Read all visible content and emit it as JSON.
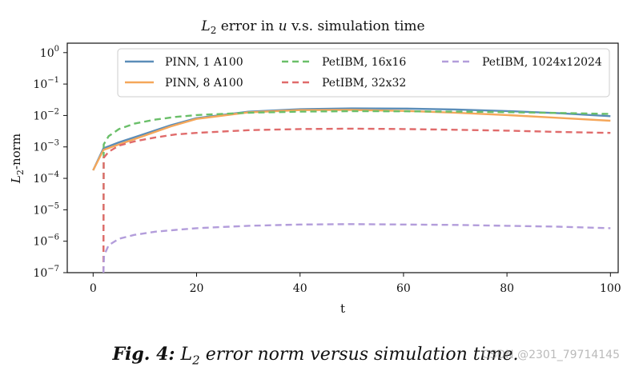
{
  "chart_data": {
    "type": "line",
    "title": "L2 error in u v.s. simulation time",
    "xlabel": "t",
    "ylabel": "L2-norm",
    "xlim": [
      -5,
      101.5
    ],
    "ylim_log10": [
      -7,
      0.3
    ],
    "y_scale": "log",
    "xticks": [
      0,
      20,
      40,
      60,
      80,
      100
    ],
    "yticks_exponents": [
      0,
      -1,
      -2,
      -3,
      -4,
      -5,
      -6,
      -7
    ],
    "grid": false,
    "legend_position": "top-right",
    "series": [
      {
        "name": "PINN, 1 A100",
        "color": "#5b8db8",
        "style": "solid",
        "x": [
          0,
          2,
          5,
          10,
          15,
          20,
          30,
          40,
          50,
          60,
          70,
          80,
          90,
          100
        ],
        "y": [
          0.00018,
          0.0009,
          0.0014,
          0.0026,
          0.0049,
          0.0082,
          0.0132,
          0.0158,
          0.0168,
          0.0166,
          0.0155,
          0.0138,
          0.0118,
          0.0095
        ]
      },
      {
        "name": "PINN, 8 A100",
        "color": "#f5a75a",
        "style": "solid",
        "x": [
          0,
          2,
          5,
          10,
          15,
          20,
          30,
          40,
          50,
          60,
          70,
          80,
          90,
          100
        ],
        "y": [
          0.00018,
          0.0008,
          0.0012,
          0.0023,
          0.0045,
          0.0078,
          0.0126,
          0.0148,
          0.015,
          0.014,
          0.0123,
          0.0103,
          0.0084,
          0.0068
        ]
      },
      {
        "name": "PetIBM, 16x16",
        "color": "#6abf69",
        "style": "dashed",
        "x": [
          2,
          2.05,
          3,
          5,
          8,
          12,
          16,
          20,
          30,
          40,
          50,
          60,
          70,
          80,
          90,
          100
        ],
        "y": [
          1e-07,
          0.0012,
          0.0022,
          0.0037,
          0.0055,
          0.0074,
          0.009,
          0.0103,
          0.0122,
          0.0133,
          0.0137,
          0.0136,
          0.0133,
          0.0127,
          0.012,
          0.0112
        ]
      },
      {
        "name": "PetIBM, 32x32",
        "color": "#e06b6b",
        "style": "dashed",
        "x": [
          2,
          2.05,
          3,
          5,
          8,
          12,
          16,
          20,
          30,
          40,
          50,
          60,
          70,
          80,
          90,
          100
        ],
        "y": [
          1e-07,
          0.00045,
          0.0007,
          0.0011,
          0.0015,
          0.002,
          0.0025,
          0.0028,
          0.0034,
          0.0037,
          0.0038,
          0.0037,
          0.0035,
          0.0033,
          0.003,
          0.0028
        ]
      },
      {
        "name": "PetIBM, 1024x12024",
        "color": "#b39ddb",
        "style": "dashed",
        "x": [
          2,
          2.1,
          3,
          5,
          8,
          12,
          16,
          20,
          30,
          40,
          50,
          60,
          70,
          80,
          90,
          100
        ],
        "y": [
          1e-07,
          3.5e-07,
          7.5e-07,
          1.2e-06,
          1.6e-06,
          2e-06,
          2.3e-06,
          2.6e-06,
          3.1e-06,
          3.4e-06,
          3.5e-06,
          3.4e-06,
          3.3e-06,
          3.1e-06,
          2.9e-06,
          2.6e-06
        ]
      }
    ]
  },
  "caption": {
    "label": "Fig. 4:",
    "text": "L2 error norm versus simulation time."
  },
  "watermark": "CSDN @2301_79714145"
}
